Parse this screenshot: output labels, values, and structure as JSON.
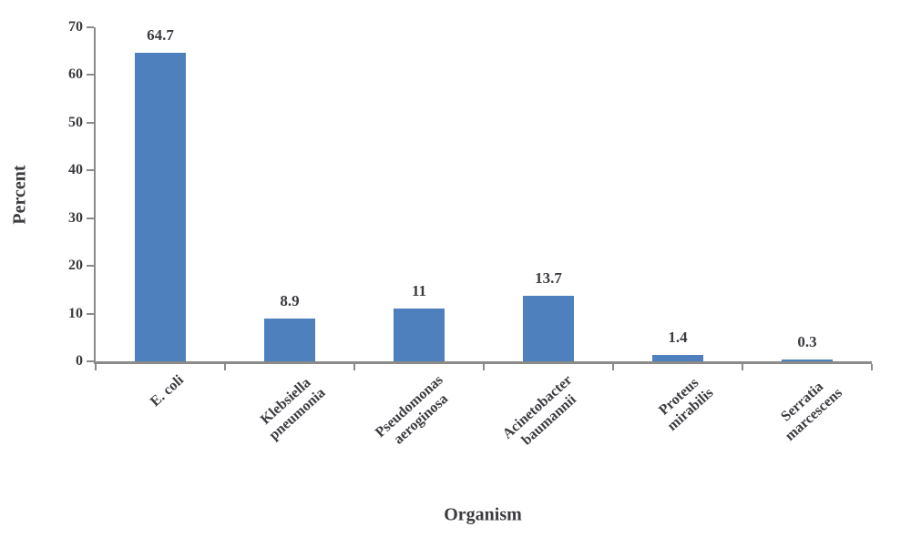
{
  "chart_data": {
    "type": "bar",
    "title": "",
    "categories": [
      "E. coli",
      "Klebsiella\npneumonia",
      "Pseudomonas\naeroginosa",
      "Acinetobacter\nbaumannii",
      "Proteus\nmirabilis",
      "Serratia\nmarcescens"
    ],
    "values": [
      64.7,
      8.9,
      11,
      13.7,
      1.4,
      0.3
    ],
    "value_labels": [
      "64.7",
      "8.9",
      "11",
      "13.7",
      "1.4",
      "0.3"
    ],
    "xlabel": "Organism",
    "ylabel": "Percent",
    "ylim": [
      0,
      70
    ],
    "yticks": [
      0,
      10,
      20,
      30,
      40,
      50,
      60,
      70
    ],
    "grid": "off",
    "legend": "none",
    "bar_color": "#4d80bc",
    "axis_color": "#8a8a8a",
    "text_color": "#3b3b40"
  }
}
